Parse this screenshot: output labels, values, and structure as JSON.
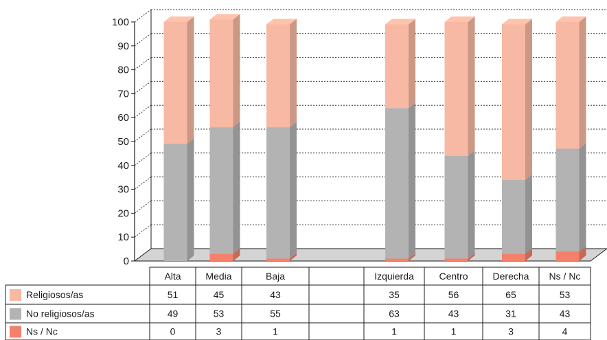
{
  "chart_data": {
    "type": "bar",
    "stacked": true,
    "three_d": true,
    "categories": [
      "Alta",
      "Media",
      "Baja",
      "",
      "Izquierda",
      "Centro",
      "Derecha",
      "Ns / Nc"
    ],
    "series": [
      {
        "name": "Religiosos/as",
        "values": [
          51,
          45,
          43,
          null,
          35,
          56,
          65,
          53
        ],
        "color": "#f7b9a3"
      },
      {
        "name": "No religiosos/as",
        "values": [
          49,
          53,
          55,
          null,
          63,
          43,
          31,
          43
        ],
        "color": "#b3b3b3"
      },
      {
        "name": "Ns / Nc",
        "values": [
          0,
          3,
          1,
          null,
          1,
          1,
          3,
          4
        ],
        "color": "#f3806a"
      }
    ],
    "stack_order_bottom_to_top": [
      "Ns / Nc",
      "No religiosos/as",
      "Religiosos/as"
    ],
    "y_ticks": [
      "0",
      "10",
      "20",
      "30",
      "40",
      "50",
      "60",
      "70",
      "80",
      "90",
      "100"
    ],
    "ylim": [
      0,
      100
    ],
    "grid": "dotted vertical wall, dashed horizontal lines",
    "data_table": true,
    "legend": "left, inside data table"
  }
}
